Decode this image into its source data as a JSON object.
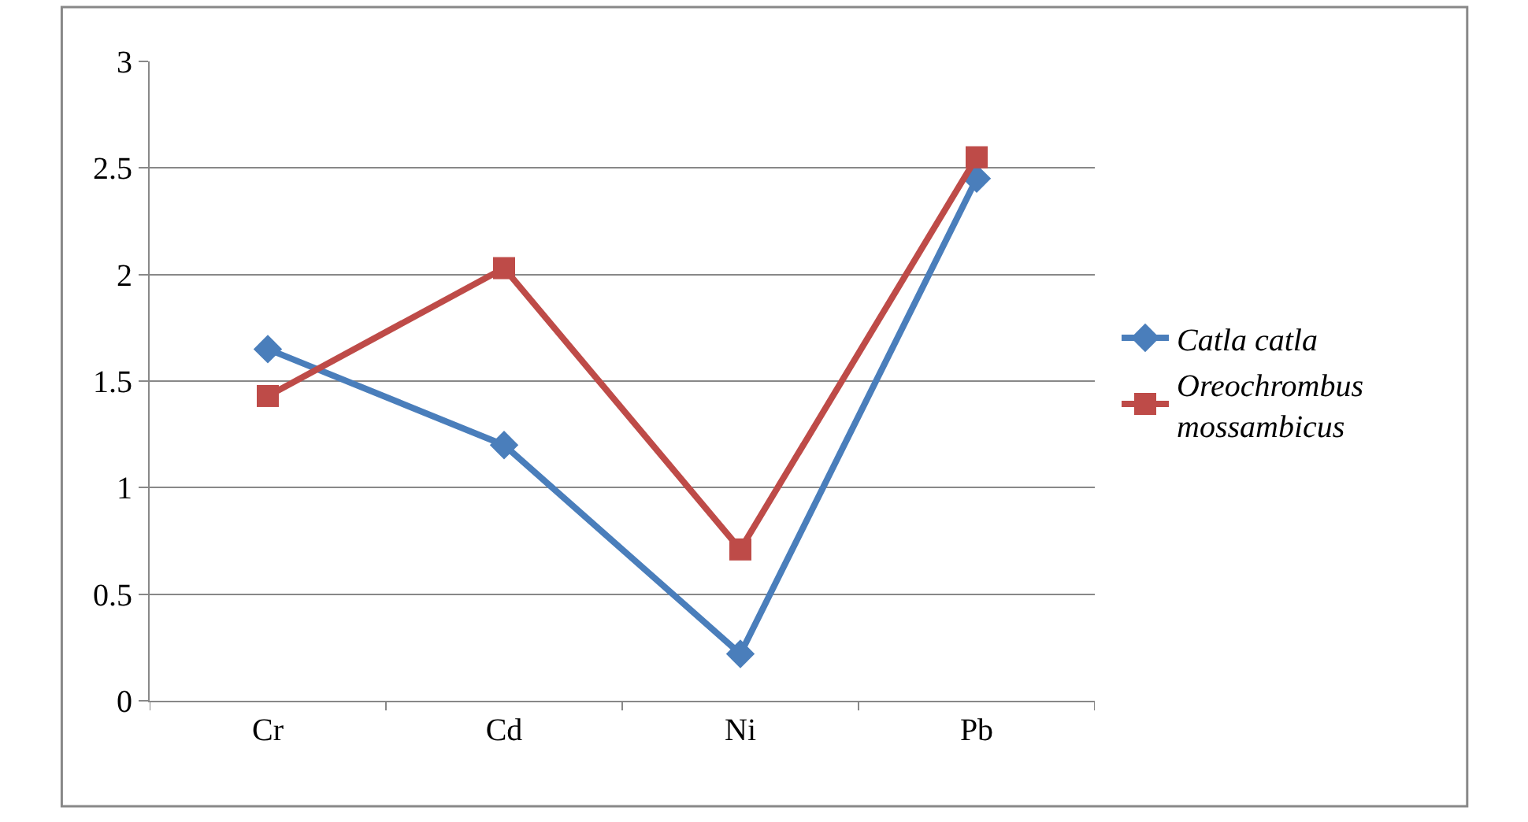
{
  "chart_data": {
    "type": "line",
    "categories": [
      "Cr",
      "Cd",
      "Ni",
      "Pb"
    ],
    "series": [
      {
        "name": "Catla catla",
        "color": "#4a7ebb",
        "marker": "diamond",
        "values": [
          1.65,
          1.2,
          0.22,
          2.45
        ]
      },
      {
        "name": "Oreochrombus mossambicus",
        "color": "#be4b48",
        "marker": "square",
        "values": [
          1.43,
          2.03,
          0.71,
          2.55
        ]
      }
    ],
    "ylim": [
      0,
      3
    ],
    "yticks": [
      0,
      0.5,
      1,
      1.5,
      2,
      2.5,
      3
    ],
    "grid": "y",
    "legend": "right"
  }
}
